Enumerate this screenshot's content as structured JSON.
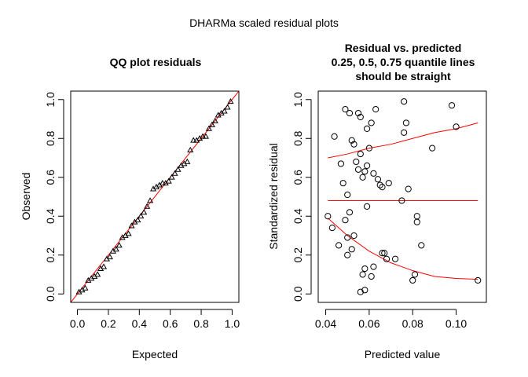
{
  "page": {
    "title": "DHARMa scaled residual plots"
  },
  "chart_data": [
    {
      "type": "scatter",
      "title": "QQ plot residuals",
      "xlabel": "Expected",
      "ylabel": "Observed",
      "xlim": [
        0,
        1
      ],
      "ylim": [
        0,
        1
      ],
      "xticks": [
        "0.0",
        "0.2",
        "0.4",
        "0.6",
        "0.8",
        "1.0"
      ],
      "yticks": [
        "0.0",
        "0.2",
        "0.4",
        "0.6",
        "0.8",
        "1.0"
      ],
      "marker": "triangle",
      "reference_line": {
        "from": [
          0,
          0
        ],
        "to": [
          1,
          1
        ],
        "color": "#ff0000"
      },
      "x": [
        0.01,
        0.03,
        0.05,
        0.07,
        0.09,
        0.11,
        0.13,
        0.15,
        0.17,
        0.19,
        0.21,
        0.23,
        0.25,
        0.27,
        0.29,
        0.31,
        0.33,
        0.35,
        0.37,
        0.39,
        0.41,
        0.43,
        0.45,
        0.47,
        0.49,
        0.51,
        0.53,
        0.55,
        0.57,
        0.59,
        0.61,
        0.63,
        0.65,
        0.67,
        0.69,
        0.71,
        0.73,
        0.75,
        0.77,
        0.79,
        0.81,
        0.83,
        0.85,
        0.87,
        0.89,
        0.91,
        0.93,
        0.95,
        0.97,
        0.99
      ],
      "y": [
        0.01,
        0.02,
        0.03,
        0.07,
        0.08,
        0.09,
        0.1,
        0.13,
        0.14,
        0.18,
        0.19,
        0.22,
        0.23,
        0.25,
        0.29,
        0.3,
        0.31,
        0.35,
        0.37,
        0.38,
        0.4,
        0.42,
        0.45,
        0.48,
        0.54,
        0.55,
        0.56,
        0.57,
        0.57,
        0.58,
        0.6,
        0.62,
        0.64,
        0.66,
        0.67,
        0.68,
        0.74,
        0.79,
        0.79,
        0.8,
        0.81,
        0.81,
        0.85,
        0.87,
        0.89,
        0.92,
        0.93,
        0.94,
        0.96,
        0.99
      ]
    },
    {
      "type": "scatter",
      "title_lines": [
        "Residual vs. predicted",
        "0.25, 0.5, 0.75 quantile lines",
        "should be straight"
      ],
      "xlabel": "Predicted value",
      "ylabel": "Standardized residual",
      "xlim": [
        0.038,
        0.111
      ],
      "ylim": [
        0,
        1
      ],
      "xticks": [
        "0.04",
        "0.06",
        "0.08",
        "0.10"
      ],
      "yticks": [
        "0.0",
        "0.2",
        "0.4",
        "0.6",
        "0.8",
        "1.0"
      ],
      "marker": "circle",
      "x": [
        0.041,
        0.043,
        0.044,
        0.046,
        0.047,
        0.048,
        0.049,
        0.049,
        0.05,
        0.05,
        0.05,
        0.051,
        0.051,
        0.052,
        0.052,
        0.053,
        0.053,
        0.054,
        0.055,
        0.055,
        0.056,
        0.056,
        0.056,
        0.057,
        0.057,
        0.058,
        0.058,
        0.058,
        0.059,
        0.059,
        0.059,
        0.06,
        0.061,
        0.061,
        0.062,
        0.062,
        0.063,
        0.064,
        0.065,
        0.066,
        0.066,
        0.067,
        0.068,
        0.069,
        0.072,
        0.075,
        0.076,
        0.076,
        0.077,
        0.078,
        0.08,
        0.081,
        0.082,
        0.082,
        0.084,
        0.089,
        0.098,
        0.1,
        0.11
      ],
      "y": [
        0.4,
        0.34,
        0.81,
        0.25,
        0.67,
        0.57,
        0.38,
        0.95,
        0.2,
        0.29,
        0.51,
        0.42,
        0.93,
        0.79,
        0.23,
        0.77,
        0.3,
        0.68,
        0.64,
        0.93,
        0.91,
        0.72,
        0.01,
        0.6,
        0.1,
        0.63,
        0.13,
        0.02,
        0.45,
        0.66,
        0.85,
        0.75,
        0.88,
        0.09,
        0.62,
        0.14,
        0.95,
        0.59,
        0.56,
        0.21,
        0.55,
        0.21,
        0.18,
        0.57,
        0.18,
        0.48,
        0.83,
        0.99,
        0.88,
        0.54,
        0.07,
        0.1,
        0.4,
        0.37,
        0.25,
        0.75,
        0.97,
        0.86,
        0.07
      ],
      "quantile_lines": [
        {
          "quantile": 0.25,
          "x": [
            0.041,
            0.05,
            0.06,
            0.07,
            0.08,
            0.09,
            0.1,
            0.11
          ],
          "y": [
            0.39,
            0.3,
            0.22,
            0.16,
            0.12,
            0.09,
            0.08,
            0.075
          ],
          "color": "#ff0000"
        },
        {
          "quantile": 0.5,
          "x": [
            0.041,
            0.11
          ],
          "y": [
            0.48,
            0.48
          ],
          "color": "#ff0000"
        },
        {
          "quantile": 0.75,
          "x": [
            0.041,
            0.05,
            0.06,
            0.07,
            0.08,
            0.09,
            0.1,
            0.11
          ],
          "y": [
            0.7,
            0.72,
            0.75,
            0.77,
            0.8,
            0.83,
            0.85,
            0.88
          ],
          "color": "#ff0000"
        }
      ]
    }
  ]
}
